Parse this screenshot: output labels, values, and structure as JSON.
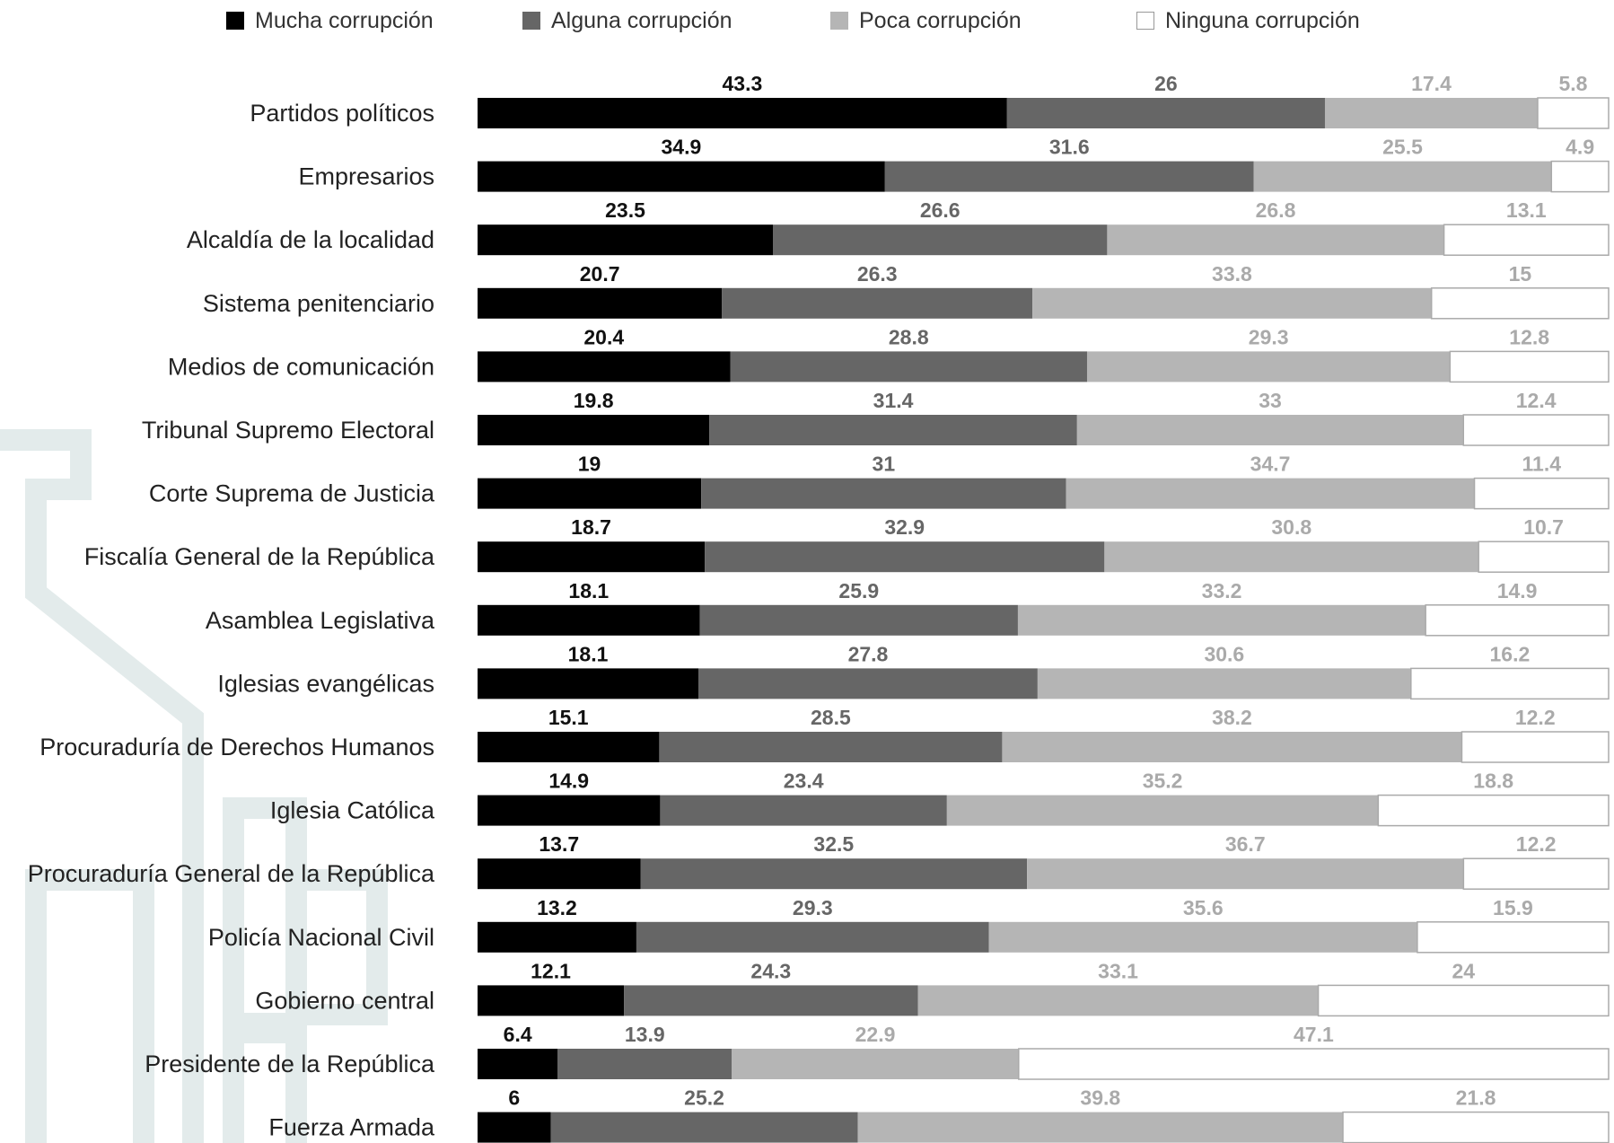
{
  "chart_data": {
    "type": "bar",
    "orientation": "horizontal",
    "stacked": true,
    "percent": true,
    "legend_position": "top",
    "grid": false,
    "categories": [
      "Partidos políticos",
      "Empresarios",
      "Alcaldía de la localidad",
      "Sistema penitenciario",
      "Medios de comunicación",
      "Tribunal Supremo Electoral",
      "Corte Suprema de Justicia",
      "Fiscalía General de la República",
      "Asamblea Legislativa",
      "Iglesias evangélicas",
      "Procuraduría de Derechos Humanos",
      "Iglesia Católica",
      "Procuraduría General de la República",
      "Policía Nacional Civil",
      "Gobierno central",
      "Presidente de la República",
      "Fuerza Armada"
    ],
    "series": [
      {
        "name": "Mucha corrupción",
        "color": "#000000",
        "label_color": "#111111",
        "values": [
          43.3,
          34.9,
          23.5,
          20.7,
          20.4,
          19.8,
          19,
          18.7,
          18.1,
          18.1,
          15.1,
          14.9,
          13.7,
          13.2,
          12.1,
          6.4,
          6
        ]
      },
      {
        "name": "Alguna corrupción",
        "color": "#666666",
        "label_color": "#666666",
        "values": [
          26,
          31.6,
          26.6,
          26.3,
          28.8,
          31.4,
          31,
          32.9,
          25.9,
          27.8,
          28.5,
          23.4,
          32.5,
          29.3,
          24.3,
          13.9,
          25.2
        ]
      },
      {
        "name": "Poca corrupción",
        "color": "#b5b5b5",
        "label_color": "#aaaaaa",
        "values": [
          17.4,
          25.5,
          26.8,
          33.8,
          29.3,
          33,
          34.7,
          30.8,
          33.2,
          30.6,
          38.2,
          35.2,
          36.7,
          35.6,
          33.1,
          22.9,
          39.8
        ]
      },
      {
        "name": "Ninguna corrupción",
        "color": "#ffffff",
        "label_color": "#aaaaaa",
        "values": [
          5.8,
          4.9,
          13.1,
          15,
          12.8,
          12.4,
          11.4,
          10.7,
          14.9,
          16.2,
          12.2,
          18.8,
          12.2,
          15.9,
          24,
          47.1,
          21.8
        ]
      }
    ]
  }
}
